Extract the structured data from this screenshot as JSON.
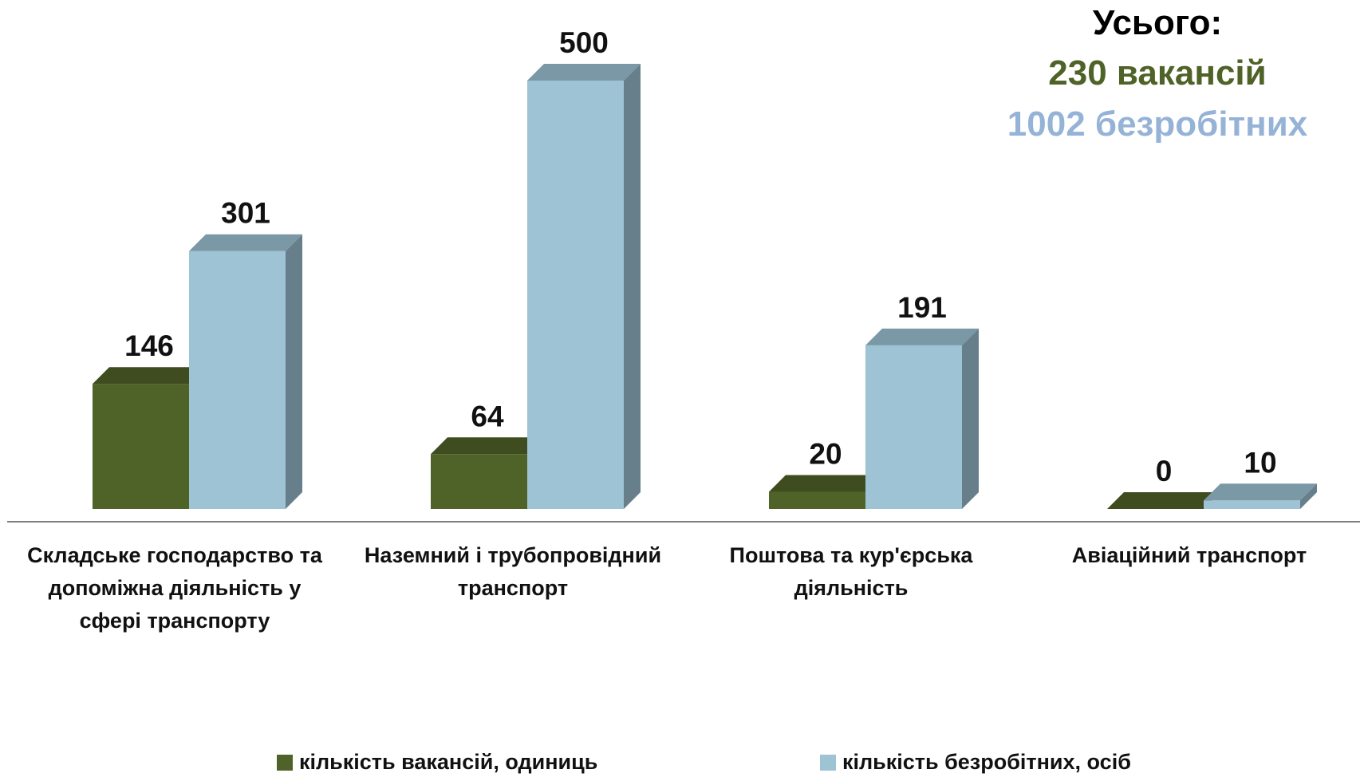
{
  "chart_data": {
    "type": "bar3d",
    "categories": [
      "Складське господарство та допоміжна діяльність у сфері транспорту",
      "Наземний і трубопровідний транспорт",
      "Поштова та кур'єрська діяльність",
      "Авіаційний транспорт"
    ],
    "series": [
      {
        "name": "кількість вакансій, одиниць",
        "color": "#4f6228",
        "values": [
          146,
          64,
          20,
          0
        ]
      },
      {
        "name": "кількість безробітних, осіб",
        "color": "#9dc3d4",
        "values": [
          301,
          500,
          191,
          10
        ]
      }
    ],
    "annotations": [
      {
        "text": "Усього:",
        "color": "#000000"
      },
      {
        "text": "230 вакансій",
        "color": "#4f6228"
      },
      {
        "text": "1002 безробітних",
        "color": "#95b3d7"
      }
    ],
    "legend": "bottom"
  }
}
